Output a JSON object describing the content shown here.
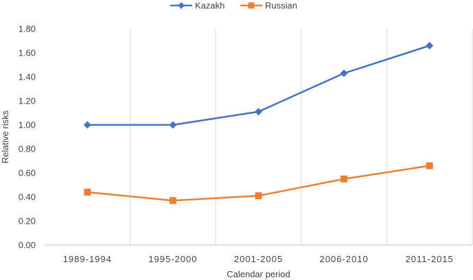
{
  "chart_data": {
    "type": "line",
    "categories": [
      "1989-1994",
      "1995-2000",
      "2001-2005",
      "2006-2010",
      "2011-2015"
    ],
    "series": [
      {
        "name": "Kazakh",
        "values": [
          1.0,
          1.0,
          1.11,
          1.43,
          1.66
        ],
        "color": "#4472C4",
        "marker": "diamond"
      },
      {
        "name": "Russian",
        "values": [
          0.44,
          0.37,
          0.41,
          0.55,
          0.66
        ],
        "color": "#ED7D31",
        "marker": "square"
      }
    ],
    "xlabel": "Calendar period",
    "ylabel": "Relative risks",
    "ylim": [
      0,
      1.8
    ],
    "yticks": [
      "0.00",
      "0.20",
      "0.40",
      "0.60",
      "0.80",
      "1.00",
      "1.20",
      "1.40",
      "1.60",
      "1.80"
    ],
    "grid": "vertical",
    "legend": "top-center"
  }
}
